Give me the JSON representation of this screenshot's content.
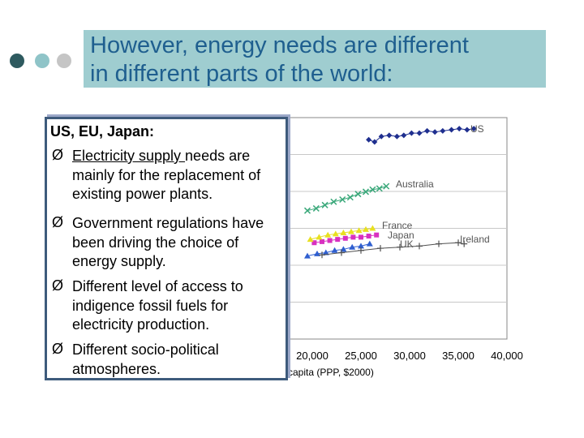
{
  "slide": {
    "title_lines": [
      "However, energy needs are different",
      "in different parts of the world:"
    ],
    "colors": {
      "title_bg": "#9fcdd0",
      "title_text": "#1f5f8f",
      "dot_dark": "#2e5a5f",
      "dot_mid": "#8fc4c8",
      "dot_light": "#c5c5c5"
    }
  },
  "textbox": {
    "heading": "US, EU, Japan:",
    "bullet_glyph": "Ø",
    "b1_underlined": "Electricity supply ",
    "b1_rest": "needs are mainly for the replacement of existing power plants.",
    "b2": "Government regulations have been driving the choice of energy supply.",
    "b3": "Different level of access to indigence fossil fuels for electricity production.",
    "b4": "Different socio-political atmospheres."
  },
  "chart_data": {
    "type": "scatter",
    "xlabel": "capita (PPP, $2000)",
    "x_tick_labels": [
      "20,000",
      "25,000",
      "30,000",
      "35,000",
      "40,000"
    ],
    "xlim": [
      0,
      40000
    ],
    "grid": true,
    "series": [
      {
        "name": "US",
        "color": "#1f2f8f",
        "marker": "diamond",
        "points": [
          [
            25800,
            180
          ],
          [
            26400,
            178
          ],
          [
            27100,
            183
          ],
          [
            27900,
            184
          ],
          [
            28700,
            183
          ],
          [
            29400,
            184
          ],
          [
            30200,
            186
          ],
          [
            31000,
            186
          ],
          [
            31800,
            188
          ],
          [
            32600,
            187
          ],
          [
            33400,
            188
          ],
          [
            34300,
            189
          ],
          [
            35100,
            190
          ],
          [
            35900,
            189
          ],
          [
            36600,
            190
          ]
        ]
      },
      {
        "name": "Australia",
        "color": "#3aa87a",
        "marker": "cross",
        "points": [
          [
            19500,
            116
          ],
          [
            20400,
            118
          ],
          [
            21300,
            121
          ],
          [
            22200,
            124
          ],
          [
            23100,
            126
          ],
          [
            23900,
            128
          ],
          [
            24700,
            131
          ],
          [
            25500,
            133
          ],
          [
            26200,
            135
          ],
          [
            26900,
            136
          ],
          [
            27600,
            138
          ]
        ]
      },
      {
        "name": "France",
        "color": "#d830c0",
        "marker": "square",
        "points": [
          [
            20200,
            87
          ],
          [
            21000,
            88
          ],
          [
            21800,
            89
          ],
          [
            22600,
            90
          ],
          [
            23400,
            91
          ],
          [
            24200,
            92
          ],
          [
            25000,
            92
          ],
          [
            25800,
            93
          ],
          [
            26600,
            94
          ]
        ]
      },
      {
        "name": "Japan",
        "color": "#e8e020",
        "marker": "triangle",
        "points": [
          [
            19800,
            90
          ],
          [
            20700,
            92
          ],
          [
            21600,
            94
          ],
          [
            22400,
            95
          ],
          [
            23200,
            96
          ],
          [
            24000,
            97
          ],
          [
            24800,
            98
          ],
          [
            25500,
            99
          ],
          [
            26200,
            100
          ]
        ]
      },
      {
        "name": "UK",
        "color": "#2f5fd0",
        "marker": "triangle",
        "points": [
          [
            19500,
            75
          ],
          [
            20500,
            77
          ],
          [
            21400,
            78
          ],
          [
            22300,
            80
          ],
          [
            23200,
            81
          ],
          [
            24100,
            83
          ],
          [
            25000,
            84
          ],
          [
            25900,
            86
          ]
        ]
      },
      {
        "name": "Ireland",
        "color": "#505050",
        "marker": "plus",
        "points": [
          [
            21000,
            76
          ],
          [
            23000,
            78
          ],
          [
            25000,
            80
          ],
          [
            27000,
            82
          ],
          [
            29000,
            83
          ],
          [
            31000,
            84
          ],
          [
            33000,
            86
          ],
          [
            35000,
            87
          ],
          [
            35600,
            86
          ]
        ]
      }
    ]
  }
}
